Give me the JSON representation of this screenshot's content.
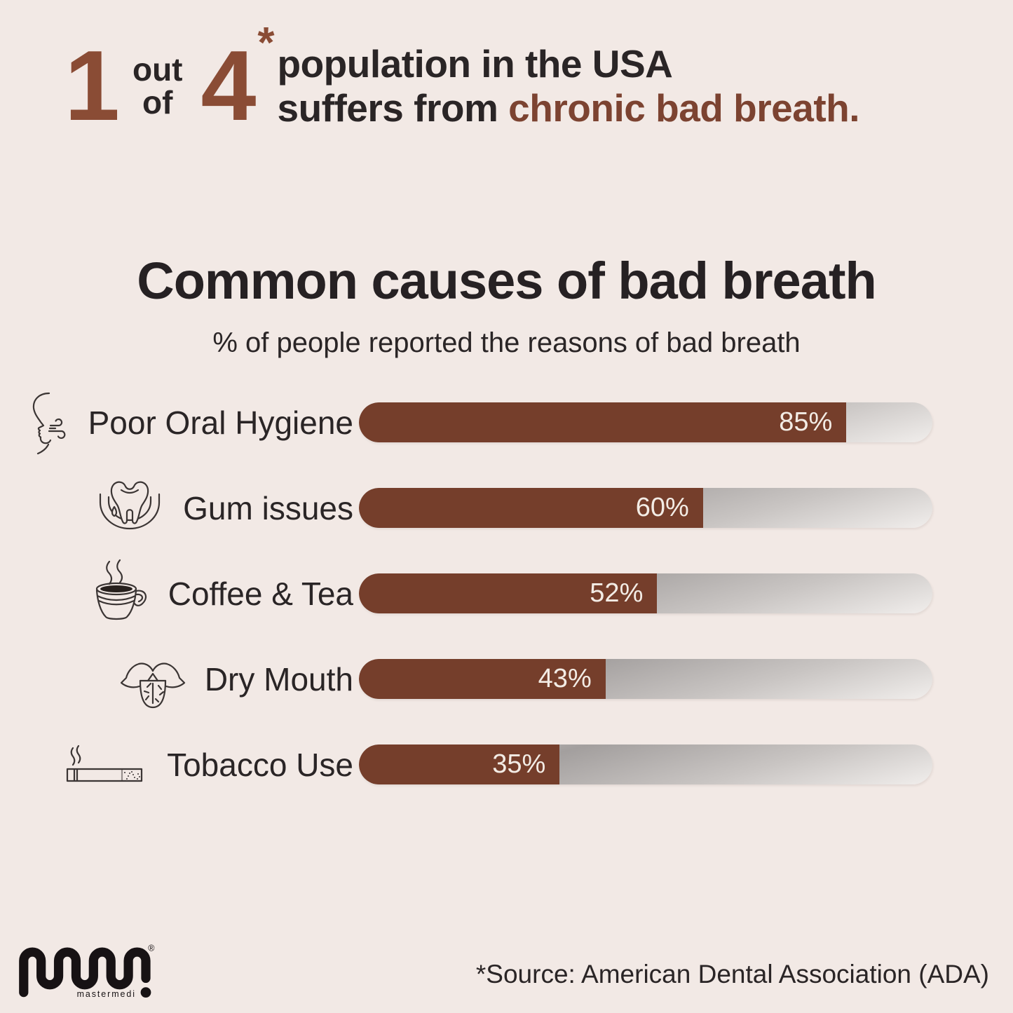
{
  "page": {
    "background_color": "#f2e9e5",
    "bar_color": "#753e2b",
    "accent_color": "#8a4c35",
    "accent_text_color": "#7c4331",
    "text_color": "#2a2526",
    "bar_value_text_color": "#f3ece5"
  },
  "header": {
    "numerator": "1",
    "out_label": "out",
    "of_label": "of",
    "denominator": "4",
    "asterisk": "*",
    "line1": "population in the USA",
    "line2_prefix": "suffers from ",
    "line2_accent": "chronic bad breath."
  },
  "chart": {
    "title": "Common causes of bad breath",
    "subtitle": "% of people reported the reasons of bad breath"
  },
  "chart_data": {
    "type": "bar",
    "orientation": "horizontal",
    "title": "Common causes of bad breath",
    "subtitle": "% of people reported the reasons of bad breath",
    "categories": [
      "Poor Oral Hygiene",
      "Gum issues",
      "Coffee & Tea",
      "Dry Mouth",
      "Tobacco Use"
    ],
    "values": [
      85,
      60,
      52,
      43,
      35
    ],
    "value_labels": [
      "85%",
      "60%",
      "52%",
      "43%",
      "35%"
    ],
    "icons": [
      "bad-breath-face-icon",
      "gum-tooth-icon",
      "coffee-cup-icon",
      "dry-mouth-tongue-icon",
      "cigarette-icon"
    ],
    "xlim": [
      0,
      100
    ],
    "grid": false,
    "legend": "none",
    "bar_color": "#753e2b",
    "track_gradient": [
      "#d2cfce",
      "#a39f9e",
      "#f1eeec"
    ],
    "value_label_position": "inside-end"
  },
  "footer": {
    "logo_text": "mastermedi",
    "registered_mark": "®",
    "logo_exclamation": "!",
    "source": "*Source: American Dental Association (ADA)"
  }
}
